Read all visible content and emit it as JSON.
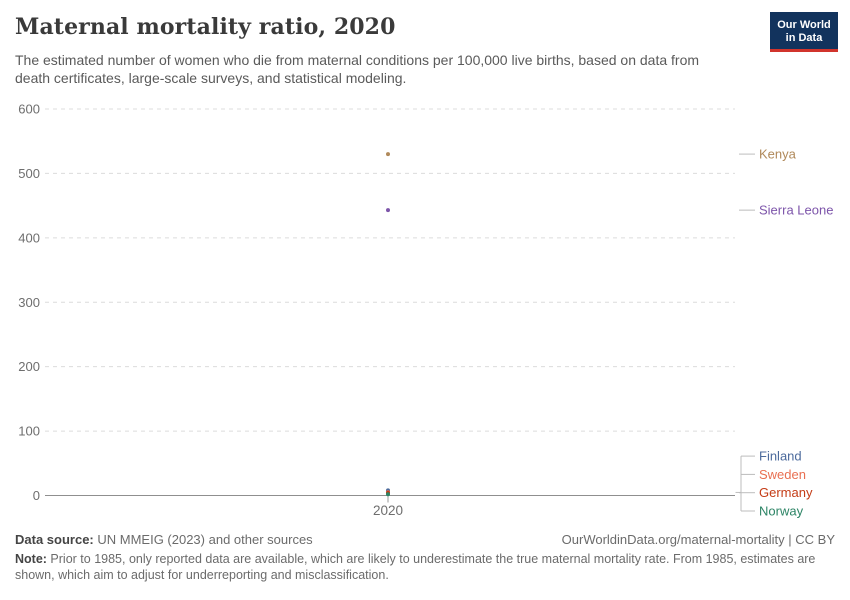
{
  "header": {
    "title": "Maternal mortality ratio, 2020",
    "subtitle": "The estimated number of women who die from maternal conditions per 100,000 live births, based on data from death certificates, large-scale surveys, and statistical modeling.",
    "logo": {
      "line1": "Our World",
      "line2": "in Data",
      "bg_color": "#12335d",
      "accent_color": "#d1342c"
    }
  },
  "chart_data": {
    "type": "scatter",
    "title": "Maternal mortality ratio, 2020",
    "x": [
      2020
    ],
    "xticks": [
      "2020"
    ],
    "xlabel": "",
    "ylabel": "",
    "ylim": [
      0,
      600
    ],
    "yticks": [
      0,
      100,
      200,
      300,
      400,
      500,
      600
    ],
    "grid": "horizontal-dashed",
    "legend_position": "right-entity-labels",
    "series": [
      {
        "name": "Kenya",
        "values": [
          530
        ],
        "color": "#b0895a"
      },
      {
        "name": "Sierra Leone",
        "values": [
          443
        ],
        "color": "#7d55aa"
      },
      {
        "name": "Finland",
        "values": [
          8
        ],
        "color": "#4c6a9c"
      },
      {
        "name": "Sweden",
        "values": [
          5
        ],
        "color": "#e96f51"
      },
      {
        "name": "Germany",
        "values": [
          4
        ],
        "color": "#c43c16"
      },
      {
        "name": "Norway",
        "values": [
          2
        ],
        "color": "#2c8465"
      }
    ],
    "style": {
      "gridline_color": "#dcdcdc",
      "axis_line_color": "#8f8f8f",
      "tick_label_color": "#6e6e6e",
      "connector_color": "#bcbcbc"
    }
  },
  "footer": {
    "data_source_label": "Data source:",
    "data_source": " UN MMEIG (2023) and other sources",
    "attribution": "OurWorldinData.org/maternal-mortality | CC BY",
    "note_label": "Note:",
    "note": " Prior to 1985, only reported data are available, which are likely to underestimate the true maternal mortality rate. From 1985, estimates are shown, which aim to adjust for underreporting and misclassification."
  }
}
